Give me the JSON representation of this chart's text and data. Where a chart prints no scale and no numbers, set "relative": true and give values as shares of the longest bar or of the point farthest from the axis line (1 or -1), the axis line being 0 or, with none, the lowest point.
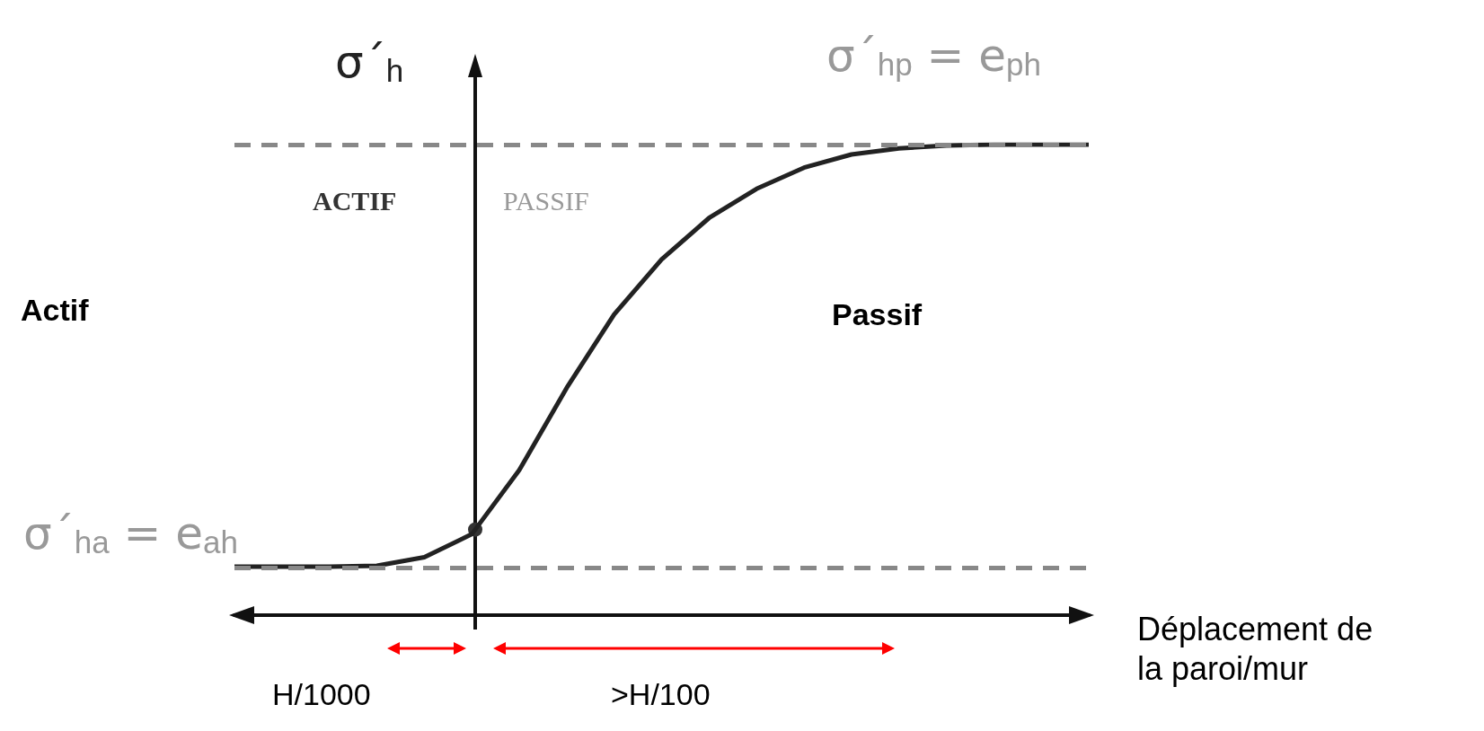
{
  "chart_data": {
    "type": "line",
    "relative": true,
    "xlabel": "Déplacement de la paroi/mur",
    "ylabel": "σ´$_{h}$",
    "categories": [
      null,
      null,
      null,
      null,
      null,
      null,
      null,
      null,
      null,
      null,
      null,
      null,
      null,
      null,
      null,
      null,
      null,
      null,
      null
    ],
    "series": [
      {
        "color": "#222222",
        "values": [
          0.103,
          0.103,
          0.103,
          0.105,
          0.123,
          0.172,
          0.308,
          0.483,
          0.639,
          0.756,
          0.844,
          0.906,
          0.951,
          0.979,
          0.992,
          0.998,
          1,
          1,
          1
        ]
      }
    ],
    "ref_lines": [
      {
        "axis": "y",
        "value": 0.103,
        "label": "σ´$_{ha}$ = e$_{ah}$",
        "color": "#888888",
        "line_style": "dashed"
      },
      {
        "axis": "y",
        "value": 1,
        "label": "σ´$_{hp}$ = e$_{ph}$",
        "color": "#888888",
        "line_style": "dashed"
      }
    ],
    "annotations": [
      "ACTIF",
      "PASSIF",
      "Actif",
      "Passif",
      "H/1000",
      ">H/100"
    ]
  }
}
